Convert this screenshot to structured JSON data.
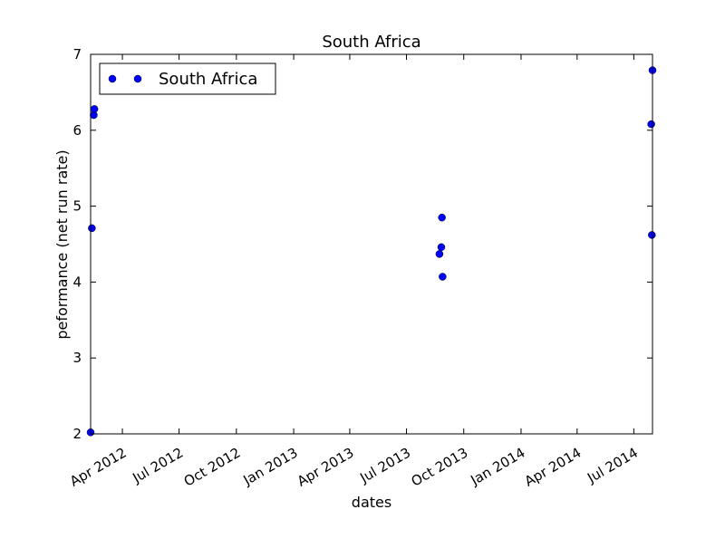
{
  "chart_data": {
    "type": "scatter",
    "title": "South Africa",
    "xlabel": "dates",
    "ylabel": "peformance (net run rate)",
    "ylim": [
      2,
      7
    ],
    "xlim": [
      "2012-02-10",
      "2014-07-31"
    ],
    "y_ticks": [
      2,
      3,
      4,
      5,
      6,
      7
    ],
    "x_ticks": [
      {
        "date": "2012-04-01",
        "label": "Apr 2012"
      },
      {
        "date": "2012-07-01",
        "label": "Jul 2012"
      },
      {
        "date": "2012-10-01",
        "label": "Oct 2012"
      },
      {
        "date": "2013-01-01",
        "label": "Jan 2013"
      },
      {
        "date": "2013-04-01",
        "label": "Apr 2013"
      },
      {
        "date": "2013-07-01",
        "label": "Jul 2013"
      },
      {
        "date": "2013-10-01",
        "label": "Oct 2013"
      },
      {
        "date": "2014-01-01",
        "label": "Jan 2014"
      },
      {
        "date": "2014-04-01",
        "label": "Apr 2014"
      },
      {
        "date": "2014-07-01",
        "label": "Jul 2014"
      }
    ],
    "grid": false,
    "legend": "top-left",
    "series": [
      {
        "name": "South Africa",
        "color": "#0000ff",
        "marker": "circle",
        "points": [
          {
            "x": "2012-02-10",
            "y": 2.02
          },
          {
            "x": "2012-02-12",
            "y": 4.71
          },
          {
            "x": "2012-02-15",
            "y": 6.2
          },
          {
            "x": "2012-02-16",
            "y": 6.28
          },
          {
            "x": "2013-08-23",
            "y": 4.37
          },
          {
            "x": "2013-08-26",
            "y": 4.46
          },
          {
            "x": "2013-08-27",
            "y": 4.85
          },
          {
            "x": "2013-08-28",
            "y": 4.07
          },
          {
            "x": "2014-07-29",
            "y": 6.08
          },
          {
            "x": "2014-07-30",
            "y": 4.62
          },
          {
            "x": "2014-07-31",
            "y": 6.79
          }
        ]
      }
    ]
  }
}
